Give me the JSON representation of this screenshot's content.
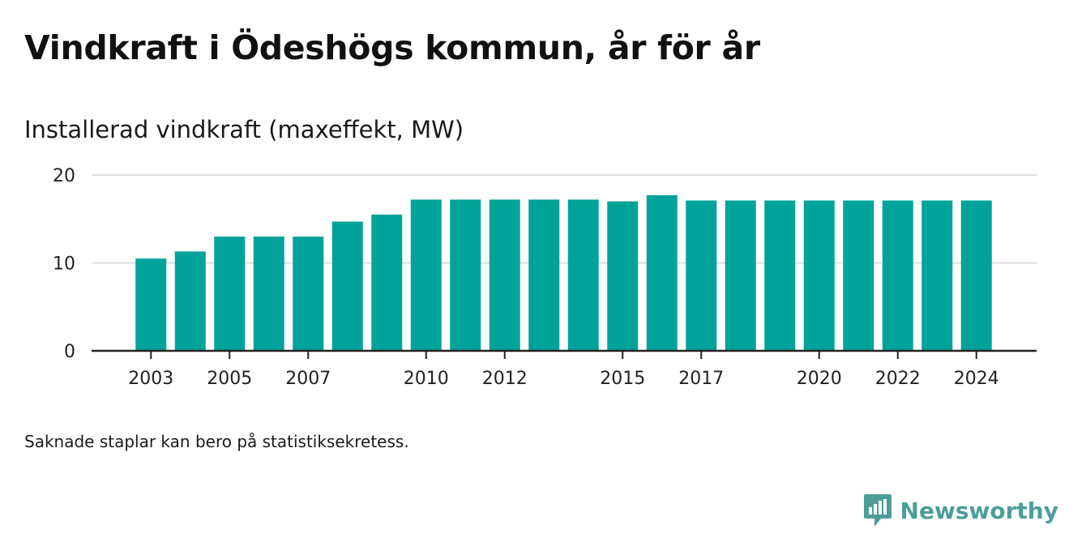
{
  "title": "Vindkraft i Ödeshögs kommun, år för år",
  "subtitle": "Installerad vindkraft (maxeffekt, MW)",
  "footnote": "Saknade staplar kan bero på statistiksekretess.",
  "logo": {
    "text": "Newsworthy",
    "color": "#4b9e98",
    "icon": "bar-chart-speech-bubble-icon"
  },
  "colors": {
    "bar": "#00a39a",
    "grid": "#dddddd",
    "axis": "#222222"
  },
  "chart_data": {
    "type": "bar",
    "title": "",
    "ylabel": "",
    "xlabel": "",
    "ylim": [
      0,
      20
    ],
    "yticks": [
      0,
      10,
      20
    ],
    "x_tick_labels": [
      "2003",
      "2005",
      "2007",
      "2010",
      "2012",
      "2015",
      "2017",
      "2020",
      "2022",
      "2024"
    ],
    "grid": true,
    "categories": [
      "2003",
      "2004",
      "2005",
      "2006",
      "2007",
      "2008",
      "2009",
      "2010",
      "2011",
      "2012",
      "2013",
      "2014",
      "2015",
      "2016",
      "2017",
      "2018",
      "2019",
      "2020",
      "2021",
      "2022",
      "2023",
      "2024"
    ],
    "values": [
      10.5,
      11.3,
      13.0,
      13.0,
      13.0,
      14.7,
      15.5,
      17.2,
      17.2,
      17.2,
      17.2,
      17.2,
      17.0,
      17.7,
      17.1,
      17.1,
      17.1,
      17.1,
      17.1,
      17.1,
      17.1,
      17.1
    ]
  }
}
